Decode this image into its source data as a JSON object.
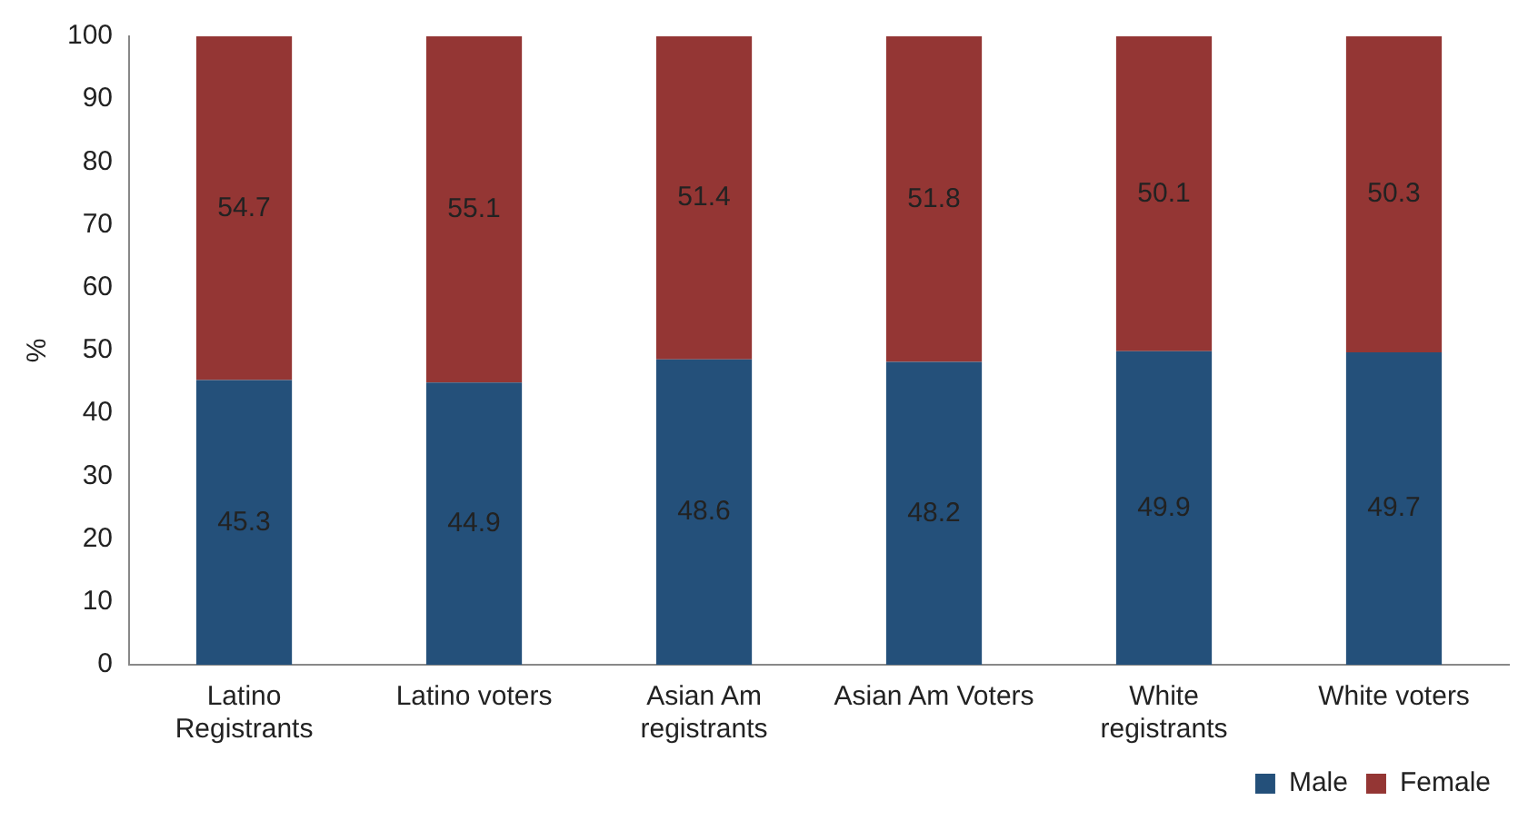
{
  "chart_data": {
    "type": "bar",
    "stacked": true,
    "ylabel": "%",
    "categories": [
      "Latino Registrants",
      "Latino voters",
      "Asian Am registrants",
      "Asian Am Voters",
      "White registrants",
      "White voters"
    ],
    "series": [
      {
        "name": "Male",
        "color": "#24507a",
        "values": [
          45.3,
          44.9,
          48.6,
          48.2,
          49.9,
          49.7
        ]
      },
      {
        "name": "Female",
        "color": "#943634",
        "values": [
          54.7,
          55.1,
          51.4,
          51.8,
          50.1,
          50.3
        ]
      }
    ],
    "ylim": [
      0,
      100
    ],
    "yticks": [
      0,
      10,
      20,
      30,
      40,
      50,
      60,
      70,
      80,
      90,
      100
    ],
    "grid": false,
    "legend": "bottom right",
    "data_labels": true
  }
}
